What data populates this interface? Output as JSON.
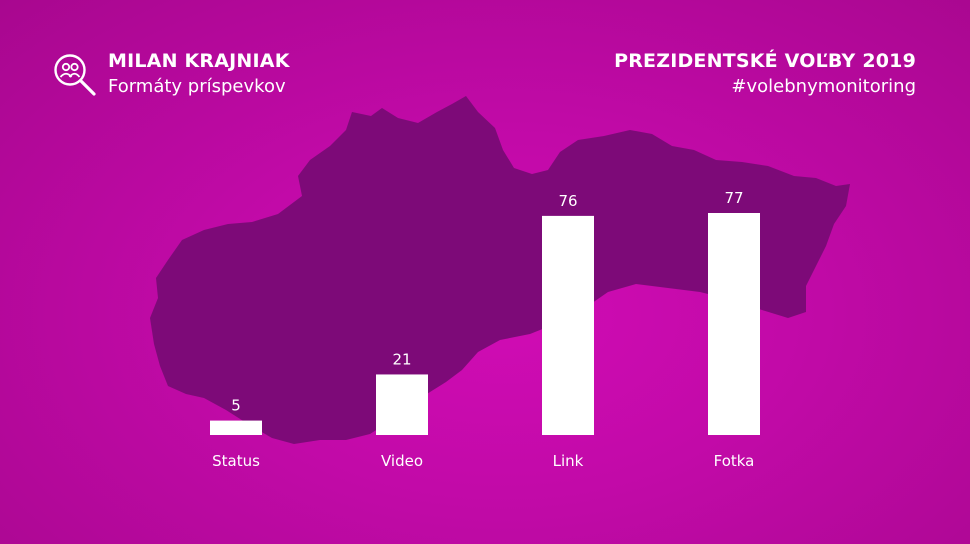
{
  "header": {
    "left_title": "MILAN KRAJNIAK",
    "left_subtitle": "Formáty príspevkov",
    "right_title": "PREZIDENTSKÉ VOĽBY 2019",
    "right_subtitle": "#volebnymonitoring",
    "logo_icon": "magnifier-people-icon"
  },
  "colors": {
    "background": "#c20aa8",
    "map": "#7d0a78",
    "bars": "#ffffff",
    "text": "#ffffff"
  },
  "chart_data": {
    "type": "bar",
    "title": "",
    "xlabel": "",
    "ylabel": "",
    "categories": [
      "Status",
      "Video",
      "Link",
      "Fotka"
    ],
    "values": [
      5,
      21,
      76,
      77
    ],
    "ylim": [
      0,
      77
    ],
    "grid": false,
    "data_labels": true
  }
}
